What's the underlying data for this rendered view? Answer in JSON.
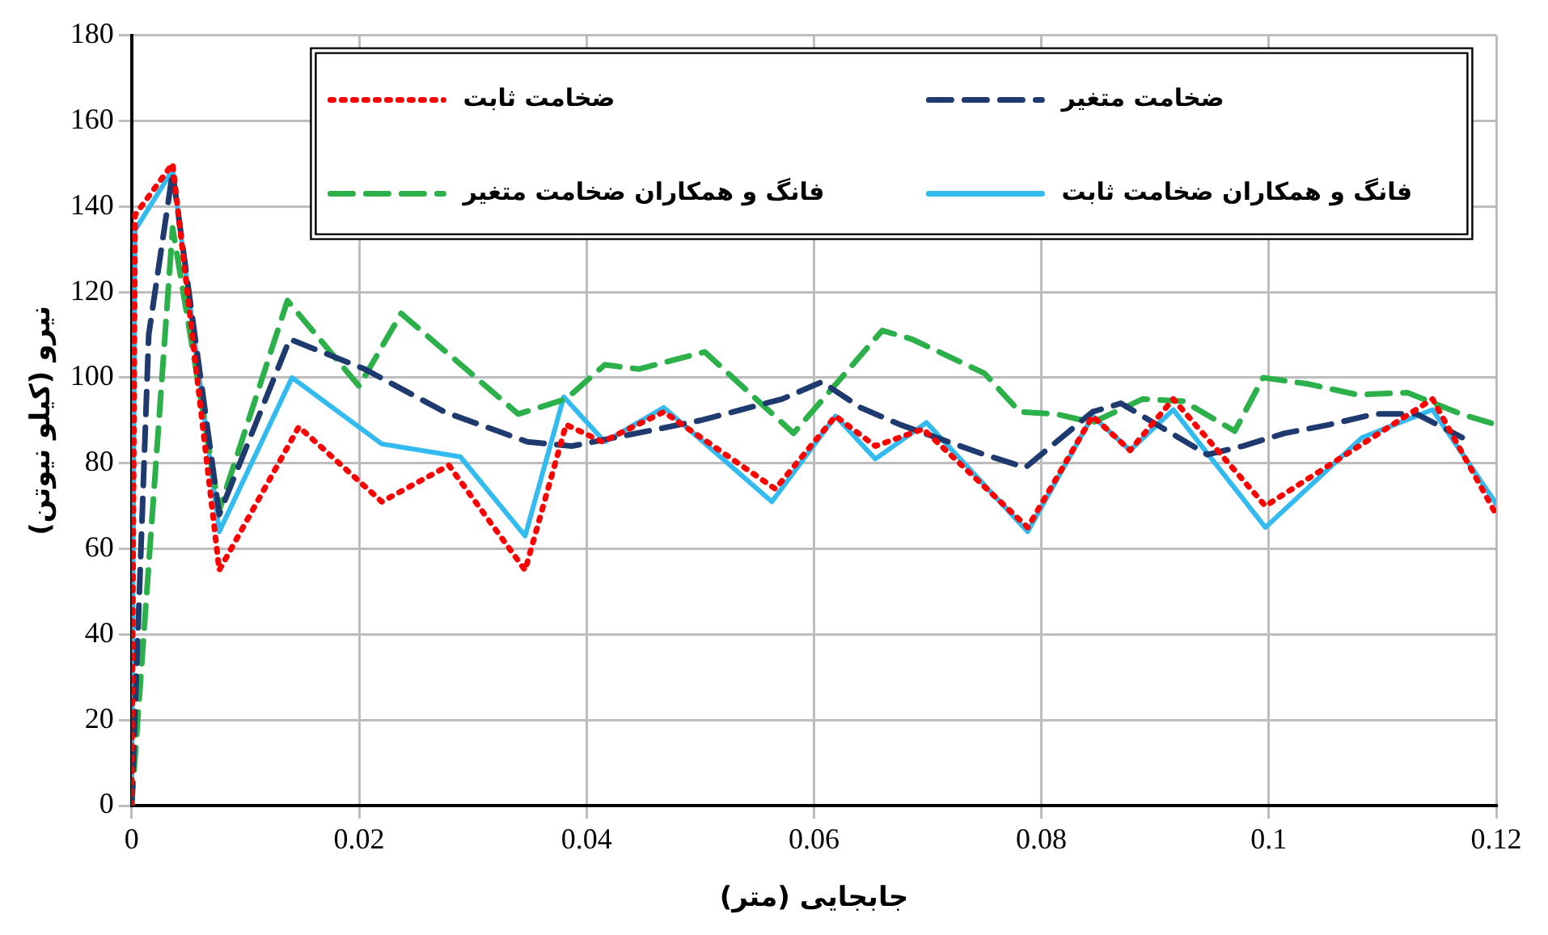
{
  "chart_data": {
    "type": "line",
    "xlabel": "جابجایی (متر)",
    "ylabel": "نیرو (کیلو نیوتن)",
    "xlim": [
      0,
      0.12
    ],
    "xticks": [
      0,
      0.02,
      0.04,
      0.06,
      0.08,
      0.1,
      0.12
    ],
    "ylim": [
      0,
      180
    ],
    "yticks": [
      0,
      20,
      40,
      60,
      80,
      100,
      120,
      140,
      160,
      180
    ],
    "grid": true,
    "legend": "top",
    "marker": "none",
    "series": [
      {
        "name": "ضخامت ثابت",
        "color": "#ff0000",
        "line_style": "dotted",
        "x": [
          0,
          0.0003,
          0.0036,
          0.0077,
          0.0147,
          0.022,
          0.0279,
          0.0346,
          0.0382,
          0.0414,
          0.0468,
          0.0566,
          0.0619,
          0.0654,
          0.0696,
          0.0788,
          0.0845,
          0.0878,
          0.0916,
          0.0997,
          0.1144,
          0.12
        ],
        "values": [
          0,
          138,
          150,
          55,
          88.5,
          71,
          79.5,
          55,
          89,
          85,
          92,
          74,
          91,
          84,
          88,
          65,
          91,
          83,
          95,
          70,
          95,
          68
        ]
      },
      {
        "name": "ضخامت متغیر",
        "color": "#1f3a6e",
        "line_style": "dashed",
        "x": [
          0,
          0.0015,
          0.0036,
          0.0077,
          0.0139,
          0.0205,
          0.0275,
          0.0348,
          0.0387,
          0.0463,
          0.05,
          0.0572,
          0.0607,
          0.0641,
          0.0676,
          0.075,
          0.0786,
          0.0845,
          0.087,
          0.0946,
          0.0977,
          0.1014,
          0.1053,
          0.1093,
          0.113,
          0.117
        ],
        "values": [
          0,
          110,
          148,
          68,
          109,
          102,
          92,
          85,
          84,
          88,
          90,
          95,
          99,
          93,
          89,
          82,
          79,
          92,
          94,
          82,
          84,
          87,
          89,
          91.5,
          91.5,
          86
        ]
      },
      {
        "name": "فانگ و همکاران ضخامت متغیر",
        "color": "#2bb04a",
        "line_style": "dashed",
        "x": [
          0,
          0.0036,
          0.0077,
          0.0137,
          0.02,
          0.0237,
          0.034,
          0.0382,
          0.0416,
          0.0446,
          0.0504,
          0.0582,
          0.066,
          0.0686,
          0.075,
          0.0781,
          0.0813,
          0.0845,
          0.0889,
          0.0925,
          0.097,
          0.0995,
          0.1035,
          0.1078,
          0.1122,
          0.1169,
          0.12
        ],
        "values": [
          0,
          135,
          69,
          118,
          98,
          115,
          91.5,
          95,
          103,
          102,
          106,
          87,
          111,
          109,
          101,
          92,
          91.5,
          89.5,
          95,
          94.5,
          87.5,
          100,
          98.5,
          96,
          96.5,
          91.5,
          89
        ]
      },
      {
        "name": "فانگ و همکاران ضخامت ثابت",
        "color": "#33bbf0",
        "line_style": "solid",
        "x": [
          0,
          0.0003,
          0.0036,
          0.0077,
          0.0141,
          0.022,
          0.0289,
          0.0346,
          0.038,
          0.0416,
          0.0468,
          0.0563,
          0.0619,
          0.0654,
          0.0699,
          0.0788,
          0.0845,
          0.0878,
          0.0916,
          0.0997,
          0.1082,
          0.1144,
          0.12
        ],
        "values": [
          0,
          134.5,
          148.5,
          64,
          100,
          84.5,
          81.5,
          63,
          95.5,
          85,
          93,
          71,
          91,
          81,
          89.5,
          64,
          91,
          83,
          92.5,
          65,
          86,
          92.5,
          70.5
        ]
      }
    ]
  }
}
